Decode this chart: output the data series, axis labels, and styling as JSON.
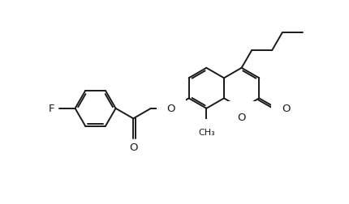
{
  "bg": "#ffffff",
  "lc": "#1a1a1a",
  "lw": 1.4,
  "fs": 9.5,
  "dbl_off": 0.055,
  "BL": 0.6,
  "fig_w": 4.31,
  "fig_h": 2.53,
  "dpi": 100,
  "xlim": [
    -0.3,
    9.0
  ],
  "ylim": [
    -0.2,
    5.8
  ]
}
